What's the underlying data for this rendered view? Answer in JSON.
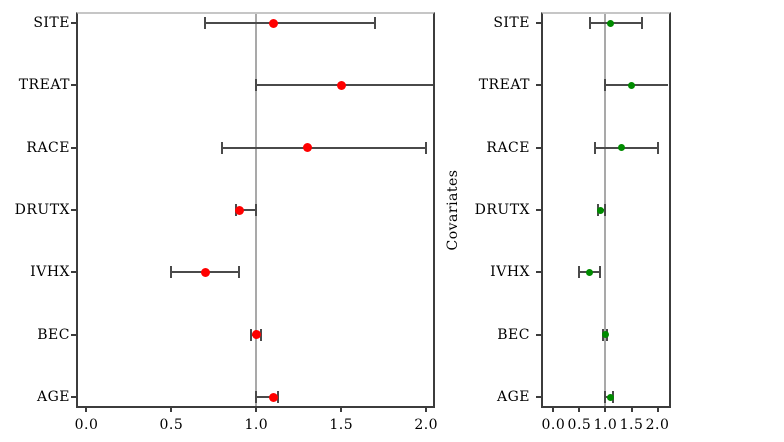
{
  "figure": {
    "title": "",
    "background_color": "#ffffff",
    "reference_line_color": "#a9a9a9",
    "axis_color": "#3c3c3c"
  },
  "chart_data": [
    {
      "type": "scatter",
      "panel": "left",
      "title": "",
      "xlabel": "",
      "ylabel": "",
      "legend": "none",
      "grid": false,
      "categories": [
        "SITE",
        "TREAT",
        "RACE",
        "DRUTX",
        "IVHX",
        "BEC",
        "AGE"
      ],
      "x_ticks": [
        0.0,
        0.5,
        1.0,
        1.5,
        2.0
      ],
      "x_tick_labels": [
        "0.0",
        "0.5",
        "1.0",
        "1.5",
        "2.0"
      ],
      "xlim": [
        -0.05,
        2.04
      ],
      "reference_line_x": 1.0,
      "point_color": "#ff0000",
      "bar_color": "#4a4a4a",
      "points": [
        {
          "category": "SITE",
          "estimate": 1.1,
          "ci_low": 0.7,
          "ci_high": 1.7,
          "ci_high_clipped": false
        },
        {
          "category": "TREAT",
          "estimate": 1.5,
          "ci_low": 1.0,
          "ci_high": 2.2,
          "ci_high_clipped": true
        },
        {
          "category": "RACE",
          "estimate": 1.3,
          "ci_low": 0.8,
          "ci_high": 2.0,
          "ci_high_clipped": false
        },
        {
          "category": "DRUTX",
          "estimate": 0.9,
          "ci_low": 0.88,
          "ci_high": 1.0,
          "ci_high_clipped": false
        },
        {
          "category": "IVHX",
          "estimate": 0.7,
          "ci_low": 0.5,
          "ci_high": 0.9,
          "ci_high_clipped": false
        },
        {
          "category": "BEC",
          "estimate": 1.0,
          "ci_low": 0.97,
          "ci_high": 1.03,
          "ci_high_clipped": false
        },
        {
          "category": "AGE",
          "estimate": 1.1,
          "ci_low": 1.0,
          "ci_high": 1.13,
          "ci_high_clipped": false
        }
      ]
    },
    {
      "type": "scatter",
      "panel": "right",
      "title": "",
      "xlabel": "",
      "ylabel": "Covariates",
      "legend": "none",
      "grid": false,
      "categories": [
        "SITE",
        "TREAT",
        "RACE",
        "DRUTX",
        "IVHX",
        "BEC",
        "AGE"
      ],
      "x_ticks": [
        0.0,
        0.5,
        1.0,
        1.5,
        2.0
      ],
      "x_tick_labels": [
        "0.0",
        "0.5",
        "1.0",
        "1.5",
        "2.0"
      ],
      "xlim": [
        -0.2,
        2.22
      ],
      "reference_line_x": 1.0,
      "point_color": "#008b00",
      "bar_color": "#4a4a4a",
      "points": [
        {
          "category": "SITE",
          "estimate": 1.1,
          "ci_low": 0.7,
          "ci_high": 1.7,
          "ci_high_clipped": false
        },
        {
          "category": "TREAT",
          "estimate": 1.5,
          "ci_low": 1.0,
          "ci_high": 2.2,
          "ci_high_clipped": true
        },
        {
          "category": "RACE",
          "estimate": 1.3,
          "ci_low": 0.8,
          "ci_high": 2.0,
          "ci_high_clipped": false
        },
        {
          "category": "DRUTX",
          "estimate": 0.9,
          "ci_low": 0.85,
          "ci_high": 1.0,
          "ci_high_clipped": false
        },
        {
          "category": "IVHX",
          "estimate": 0.7,
          "ci_low": 0.5,
          "ci_high": 0.9,
          "ci_high_clipped": false
        },
        {
          "category": "BEC",
          "estimate": 1.0,
          "ci_low": 0.96,
          "ci_high": 1.03,
          "ci_high_clipped": false
        },
        {
          "category": "AGE",
          "estimate": 1.1,
          "ci_low": 1.0,
          "ci_high": 1.15,
          "ci_high_clipped": false
        }
      ]
    }
  ]
}
